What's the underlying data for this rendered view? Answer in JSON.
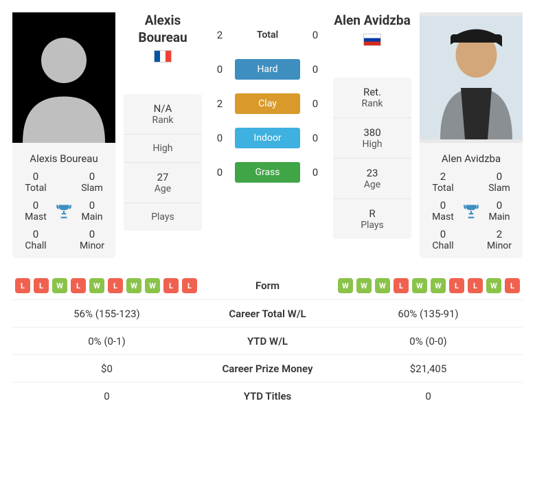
{
  "surfaces": {
    "total": {
      "label": "Total",
      "color": "transparent",
      "p1": 2,
      "p2": 0
    },
    "hard": {
      "label": "Hard",
      "color": "#3e8fc0",
      "p1": 0,
      "p2": 0
    },
    "clay": {
      "label": "Clay",
      "color": "#d99a2b",
      "p1": 2,
      "p2": 0
    },
    "indoor": {
      "label": "Indoor",
      "color": "#3eb1e0",
      "p1": 0,
      "p2": 0
    },
    "grass": {
      "label": "Grass",
      "color": "#3fa547",
      "p1": 0,
      "p2": 0
    }
  },
  "p1": {
    "name": "Alexis Boureau",
    "name_line1": "Alexis",
    "name_line2": "Boureau",
    "flag": "fr",
    "rank": "N/A",
    "rank_label": "Rank",
    "high": "",
    "high_label": "High",
    "age": "27",
    "age_label": "Age",
    "plays": "",
    "plays_label": "Plays",
    "titles": {
      "total": 0,
      "slam": 0,
      "mast": 0,
      "main": 0,
      "chall": 0,
      "minor": 0
    },
    "form": [
      "L",
      "L",
      "W",
      "L",
      "W",
      "L",
      "W",
      "W",
      "L",
      "L"
    ]
  },
  "p2": {
    "name": "Alen Avidzba",
    "name_full": "Alen Avidzba",
    "flag": "ru",
    "rank": "Ret.",
    "rank_label": "Rank",
    "high": "380",
    "high_label": "High",
    "age": "23",
    "age_label": "Age",
    "plays": "R",
    "plays_label": "Plays",
    "titles": {
      "total": 2,
      "slam": 0,
      "mast": 0,
      "main": 0,
      "chall": 0,
      "minor": 2
    },
    "form": [
      "W",
      "W",
      "W",
      "L",
      "W",
      "W",
      "L",
      "L",
      "W",
      "L"
    ]
  },
  "labels": {
    "total": "Total",
    "slam": "Slam",
    "mast": "Mast",
    "main": "Main",
    "chall": "Chall",
    "minor": "Minor",
    "form": "Form",
    "career_wl": "Career Total W/L",
    "ytd_wl": "YTD W/L",
    "prize": "Career Prize Money",
    "ytd_titles": "YTD Titles"
  },
  "compare": {
    "career_wl": {
      "p1": "56% (155-123)",
      "p2": "60% (135-91)"
    },
    "ytd_wl": {
      "p1": "0% (0-1)",
      "p2": "0% (0-0)"
    },
    "prize": {
      "p1": "$0",
      "p2": "$21,405"
    },
    "ytd_titles": {
      "p1": "0",
      "p2": "0"
    }
  }
}
